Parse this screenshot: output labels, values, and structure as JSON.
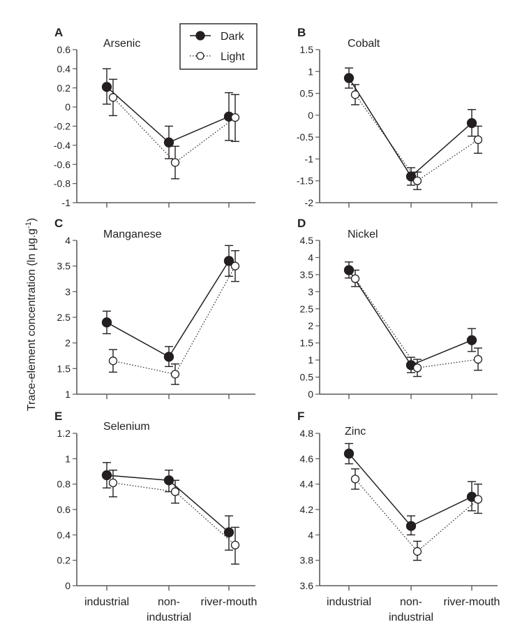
{
  "chart_data": [
    {
      "type": "line",
      "panel": "A",
      "title": "Arsenic",
      "categories": [
        "industrial",
        "non-industrial",
        "river-mouth"
      ],
      "ylim": [
        -1,
        0.6
      ],
      "yticks": [
        "0.6",
        "0.4",
        "0.2",
        "0",
        "-0.2",
        "-0.4",
        "-0.6",
        "-0.8",
        "-1"
      ],
      "ytick_values": [
        0.6,
        0.4,
        0.2,
        0,
        -0.2,
        -0.4,
        -0.6,
        -0.8,
        -1
      ],
      "series": [
        {
          "name": "Dark",
          "values": [
            0.21,
            -0.37,
            -0.1
          ],
          "lower": [
            0.03,
            -0.54,
            -0.35
          ],
          "upper": [
            0.4,
            -0.2,
            0.15
          ]
        },
        {
          "name": "Light",
          "values": [
            0.1,
            -0.58,
            -0.11
          ],
          "lower": [
            -0.09,
            -0.75,
            -0.36
          ],
          "upper": [
            0.29,
            -0.41,
            0.13
          ]
        }
      ],
      "show_category_labels": false
    },
    {
      "type": "line",
      "panel": "B",
      "title": "Cobalt",
      "categories": [
        "industrial",
        "non-industrial",
        "river-mouth"
      ],
      "ylim": [
        -2,
        1.5
      ],
      "yticks": [
        "1.5",
        "1",
        "0.5",
        "0",
        "-0.5",
        "-1",
        "-1.5",
        "-2"
      ],
      "ytick_values": [
        1.5,
        1,
        0.5,
        0,
        -0.5,
        -1,
        -1.5,
        -2
      ],
      "series": [
        {
          "name": "Dark",
          "values": [
            0.85,
            -1.4,
            -0.18
          ],
          "lower": [
            0.62,
            -1.6,
            -0.48
          ],
          "upper": [
            1.08,
            -1.2,
            0.13
          ]
        },
        {
          "name": "Light",
          "values": [
            0.47,
            -1.5,
            -0.56
          ],
          "lower": [
            0.24,
            -1.7,
            -0.87
          ],
          "upper": [
            0.7,
            -1.3,
            -0.25
          ]
        }
      ],
      "show_category_labels": false
    },
    {
      "type": "line",
      "panel": "C",
      "title": "Manganese",
      "categories": [
        "industrial",
        "non-industrial",
        "river-mouth"
      ],
      "ylim": [
        1,
        4
      ],
      "yticks": [
        "4",
        "3.5",
        "3",
        "2.5",
        "2",
        "1.5",
        "1"
      ],
      "ytick_values": [
        4,
        3.5,
        3,
        2.5,
        2,
        1.5,
        1
      ],
      "series": [
        {
          "name": "Dark",
          "values": [
            2.4,
            1.73,
            3.6
          ],
          "lower": [
            2.18,
            1.54,
            3.3
          ],
          "upper": [
            2.62,
            1.93,
            3.9
          ]
        },
        {
          "name": "Light",
          "values": [
            1.65,
            1.39,
            3.5
          ],
          "lower": [
            1.43,
            1.19,
            3.2
          ],
          "upper": [
            1.87,
            1.59,
            3.8
          ]
        }
      ],
      "show_category_labels": false
    },
    {
      "type": "line",
      "panel": "D",
      "title": "Nickel",
      "categories": [
        "industrial",
        "non-industrial",
        "river-mouth"
      ],
      "ylim": [
        0,
        4.5
      ],
      "yticks": [
        "4.5",
        "4",
        "3.5",
        "3",
        "2.5",
        "2",
        "1.5",
        "1",
        "0.5",
        "0"
      ],
      "ytick_values": [
        4.5,
        4,
        3.5,
        3,
        2.5,
        2,
        1.5,
        1,
        0.5,
        0
      ],
      "series": [
        {
          "name": "Dark",
          "values": [
            3.63,
            0.85,
            1.58
          ],
          "lower": [
            3.4,
            0.63,
            1.25
          ],
          "upper": [
            3.87,
            1.08,
            1.92
          ]
        },
        {
          "name": "Light",
          "values": [
            3.38,
            0.77,
            1.02
          ],
          "lower": [
            3.15,
            0.52,
            0.7
          ],
          "upper": [
            3.63,
            1.02,
            1.35
          ]
        }
      ],
      "show_category_labels": false
    },
    {
      "type": "line",
      "panel": "E",
      "title": "Selenium",
      "categories": [
        "industrial",
        "non-industrial",
        "river-mouth"
      ],
      "ylim": [
        0,
        1.2
      ],
      "yticks": [
        "1.2",
        "1",
        "0.8",
        "0.6",
        "0.4",
        "0.2",
        "0"
      ],
      "ytick_values": [
        1.2,
        1,
        0.8,
        0.6,
        0.4,
        0.2,
        0
      ],
      "series": [
        {
          "name": "Dark",
          "values": [
            0.87,
            0.83,
            0.42
          ],
          "lower": [
            0.77,
            0.74,
            0.28
          ],
          "upper": [
            0.97,
            0.91,
            0.55
          ]
        },
        {
          "name": "Light",
          "values": [
            0.81,
            0.74,
            0.32
          ],
          "lower": [
            0.7,
            0.65,
            0.17
          ],
          "upper": [
            0.91,
            0.83,
            0.46
          ]
        }
      ],
      "show_category_labels": true
    },
    {
      "type": "line",
      "panel": "F",
      "title": "Zinc",
      "categories": [
        "industrial",
        "non-industrial",
        "river-mouth"
      ],
      "ylim": [
        3.6,
        4.8
      ],
      "yticks": [
        "4.8",
        "4.6",
        "4.4",
        "4.2",
        "4",
        "3.8",
        "3.6"
      ],
      "ytick_values": [
        4.8,
        4.6,
        4.4,
        4.2,
        4,
        3.8,
        3.6
      ],
      "series": [
        {
          "name": "Dark",
          "values": [
            4.64,
            4.07,
            4.3
          ],
          "lower": [
            4.56,
            4.0,
            4.19
          ],
          "upper": [
            4.72,
            4.15,
            4.42
          ]
        },
        {
          "name": "Light",
          "values": [
            4.44,
            3.87,
            4.28
          ],
          "lower": [
            4.36,
            3.8,
            4.17
          ],
          "upper": [
            4.52,
            3.95,
            4.4
          ]
        }
      ],
      "show_category_labels": true
    }
  ],
  "category_display": [
    [
      "industrial"
    ],
    [
      "non-",
      "industrial"
    ],
    [
      "river-mouth"
    ]
  ],
  "ylabel_main": "Trace-element concentration (ln µg.g",
  "ylabel_superscript": "-1",
  "ylabel_close": ")",
  "legend": {
    "items": [
      {
        "name": "Dark",
        "marker": "filled-circle",
        "line": "solid"
      },
      {
        "name": "Light",
        "marker": "open-circle",
        "line": "dotted"
      }
    ],
    "placement": "top-right of panel A"
  },
  "colors": {
    "ink": "#231f20",
    "axis": "#5a5a5a",
    "light_fill": "#ffffff"
  }
}
